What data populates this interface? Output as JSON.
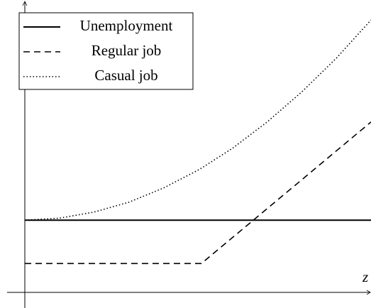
{
  "chart_data": {
    "type": "line",
    "x_label": "z",
    "x": [
      0,
      1,
      2,
      3,
      4,
      5,
      5.1,
      6,
      7,
      8,
      9,
      10
    ],
    "series": [
      {
        "name": "Unemployment",
        "color": "#000000",
        "linestyle": "solid",
        "values": [
          2.5,
          2.5,
          2.5,
          2.5,
          2.5,
          2.5,
          2.5,
          2.5,
          2.5,
          2.5,
          2.5,
          2.5
        ]
      },
      {
        "name": "Regular job",
        "color": "#000000",
        "linestyle": "dashed",
        "values": [
          1.0,
          1.0,
          1.0,
          1.0,
          1.0,
          1.0,
          1.0,
          1.9,
          2.9,
          3.9,
          4.9,
          5.9
        ]
      },
      {
        "name": "Casual job",
        "color": "#000000",
        "linestyle": "dotted",
        "values": [
          2.5,
          2.57,
          2.78,
          3.12,
          3.61,
          4.23,
          4.3,
          4.99,
          5.9,
          6.94,
          8.11,
          9.43
        ]
      }
    ],
    "xlim": [
      0,
      10
    ],
    "ylim": [
      0,
      10
    ],
    "legend": "upper left"
  }
}
